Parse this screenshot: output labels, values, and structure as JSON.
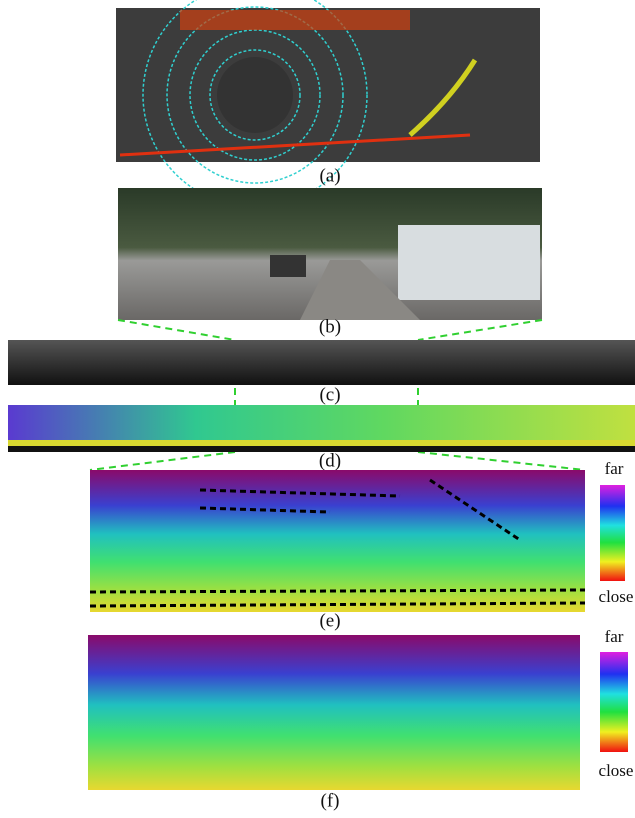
{
  "panels": [
    {
      "label": "(a)"
    },
    {
      "label": "(b)"
    },
    {
      "label": "(c)"
    },
    {
      "label": "(d)"
    },
    {
      "label": "(e)"
    },
    {
      "label": "(f)"
    }
  ],
  "colorbars": [
    {
      "top": "far",
      "bottom": "close"
    },
    {
      "top": "far",
      "bottom": "close"
    }
  ]
}
